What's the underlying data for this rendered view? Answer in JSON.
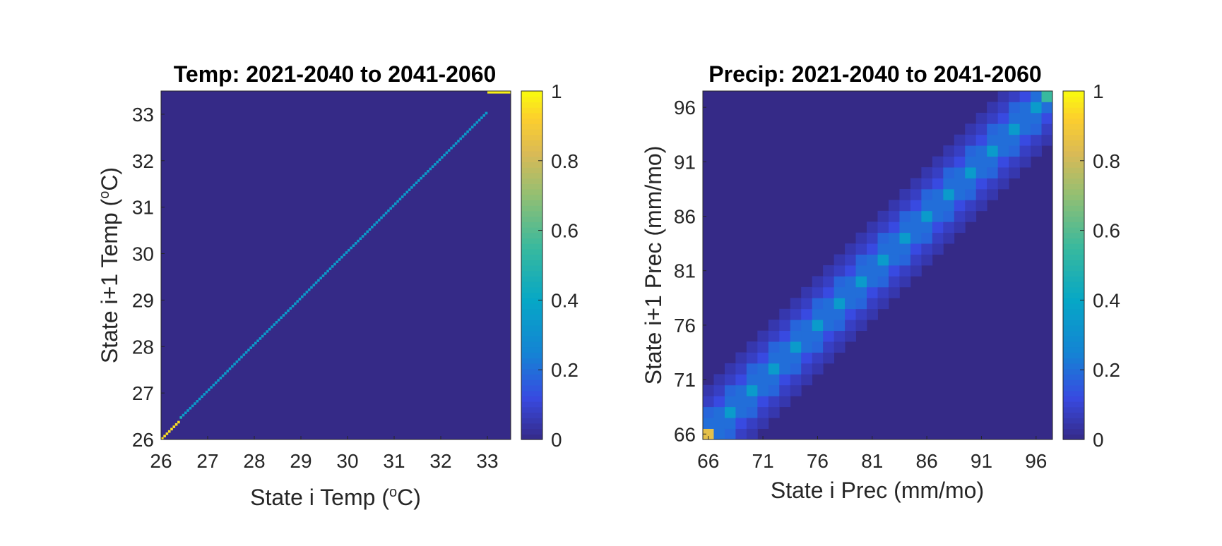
{
  "chart_data": [
    {
      "type": "heatmap",
      "title": "Temp: 2021-2040 to 2041-2060",
      "xlabel": {
        "main": "State i Temp (",
        "sup": "o",
        "tail": "C)"
      },
      "ylabel": {
        "main": "State i+1 Temp (",
        "sup": "o",
        "tail": "C)"
      },
      "x_ticks": [
        "26",
        "27",
        "28",
        "29",
        "30",
        "31",
        "32",
        "33"
      ],
      "y_ticks": [
        "26",
        "27",
        "28",
        "29",
        "30",
        "31",
        "32",
        "33"
      ],
      "xlim": [
        26,
        33.5
      ],
      "ylim": [
        26,
        33.5
      ],
      "colorbar": {
        "range": [
          0,
          1
        ],
        "ticks": [
          "0",
          "0.2",
          "0.4",
          "0.6",
          "0.8",
          "1"
        ]
      },
      "colormap": "parula",
      "structure": {
        "background_value": 0,
        "bin_width": 0.05,
        "low_diagonal": {
          "x_from": 26.0,
          "x_to": 26.4,
          "value": 0.95
        },
        "main_diagonal": {
          "x_from": 26.4,
          "x_to": 33.0,
          "value": 0.35,
          "first_value": 0.45
        },
        "top_row": {
          "x_from": 33.0,
          "x_to": 33.5,
          "y": 33.45,
          "value": 0.98
        }
      }
    },
    {
      "type": "heatmap",
      "title": "Precip: 2021-2040 to 2041-2060",
      "xlabel": {
        "main": "State i Prec (mm/mo)"
      },
      "ylabel": {
        "main": "State i+1 Prec (mm/mo)"
      },
      "x_ticks": [
        "66",
        "71",
        "76",
        "81",
        "86",
        "91",
        "96"
      ],
      "y_ticks": [
        "66",
        "71",
        "76",
        "81",
        "86",
        "91",
        "96"
      ],
      "xlim": [
        65.5,
        97.5
      ],
      "ylim": [
        65.5,
        97.5
      ],
      "colorbar": {
        "range": [
          0,
          1
        ],
        "ticks": [
          "0",
          "0.2",
          "0.4",
          "0.6",
          "0.8",
          "1"
        ]
      },
      "colormap": "parula",
      "structure": {
        "grid_size": 32,
        "start_value": 66,
        "diagonal_values": {
          "main_even": 0.35,
          "main_odd": 0.2,
          "off1": 0.2,
          "off2_even": 0.12,
          "off2_odd": 0.18,
          "off3": 0.08,
          "off4": 0.05
        },
        "corner_low": 0.85,
        "corner_high": 0.55
      }
    }
  ]
}
